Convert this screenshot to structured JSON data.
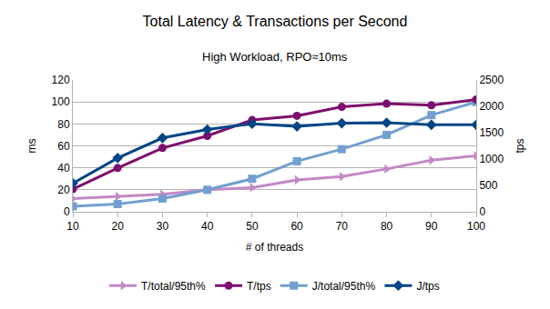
{
  "chart_data": {
    "type": "line",
    "title": "Total Latency & Transactions per Second",
    "subtitle": "High Workload, RPO≈10ms",
    "x_label": "# of threads",
    "y_label": "ms",
    "y2_label": "tps",
    "x": [
      10,
      20,
      30,
      40,
      50,
      60,
      70,
      80,
      90,
      100
    ],
    "xlim": [
      10,
      100
    ],
    "xticks": [
      10,
      20,
      30,
      40,
      50,
      60,
      70,
      80,
      90,
      100
    ],
    "ylim": [
      0,
      120
    ],
    "yticks": [
      0,
      20,
      40,
      60,
      80,
      100,
      120
    ],
    "y2lim": [
      0,
      2500
    ],
    "y2ticks": [
      0,
      500,
      1000,
      1500,
      2000,
      2500
    ],
    "grid": true,
    "legend": "bottom",
    "series": [
      {
        "name": "T/total/95th%",
        "color": "#c389c4",
        "marker": "triangle-right",
        "axis": "y",
        "values": [
          12,
          14,
          16,
          20,
          22,
          29,
          32,
          39,
          47,
          51
        ]
      },
      {
        "name": "T/tps",
        "color": "#7e0f6e",
        "marker": "circle",
        "axis": "y2",
        "values": [
          430,
          830,
          1210,
          1440,
          1740,
          1820,
          1990,
          2050,
          2020,
          2130
        ]
      },
      {
        "name": "J/total/95th%",
        "color": "#729fcf",
        "marker": "square",
        "axis": "y",
        "values": [
          5,
          7,
          12,
          20,
          30,
          46,
          57,
          70,
          88,
          100
        ]
      },
      {
        "name": "J/tps",
        "color": "#004586",
        "marker": "diamond",
        "axis": "y2",
        "values": [
          540,
          1020,
          1400,
          1560,
          1670,
          1620,
          1680,
          1690,
          1650,
          1650
        ]
      }
    ]
  }
}
